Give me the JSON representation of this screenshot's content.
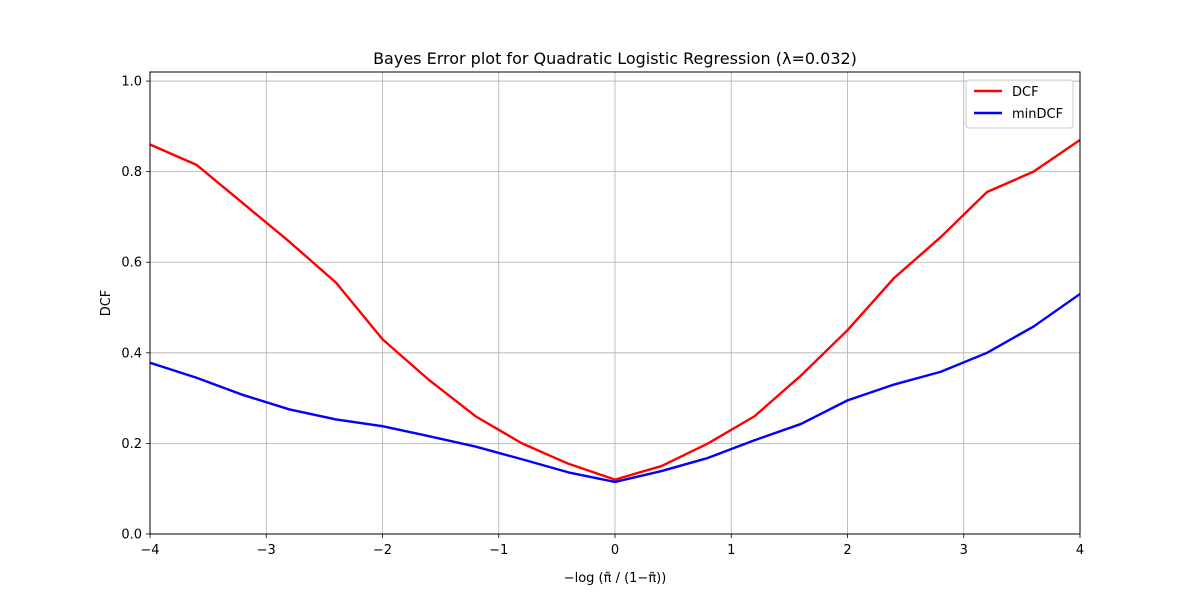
{
  "chart_data": {
    "type": "line",
    "title": "Bayes Error plot for Quadratic Logistic Regression (λ=0.032)",
    "xlabel": "−log (π̃ / (1−π̃))",
    "ylabel": "DCF",
    "xlim": [
      -4,
      4
    ],
    "ylim": [
      0,
      1.02
    ],
    "xticks": [
      -4,
      -3,
      -2,
      -1,
      0,
      1,
      2,
      3,
      4
    ],
    "xtick_labels": [
      "−4",
      "−3",
      "−2",
      "−1",
      "0",
      "1",
      "2",
      "3",
      "4"
    ],
    "yticks": [
      0.0,
      0.2,
      0.4,
      0.6,
      0.8,
      1.0
    ],
    "ytick_labels": [
      "0.0",
      "0.2",
      "0.4",
      "0.6",
      "0.8",
      "1.0"
    ],
    "grid": true,
    "legend_position": "top-right",
    "x": [
      -4,
      -3.6,
      -3.2,
      -2.8,
      -2.4,
      -2,
      -1.6,
      -1.2,
      -0.8,
      -0.4,
      0,
      0.4,
      0.8,
      1.2,
      1.6,
      2,
      2.4,
      2.8,
      3.2,
      3.6,
      4
    ],
    "series": [
      {
        "name": "DCF",
        "color": "#ff0000",
        "values": [
          0.86,
          0.815,
          0.73,
          0.645,
          0.555,
          0.43,
          0.34,
          0.26,
          0.2,
          0.155,
          0.12,
          0.15,
          0.2,
          0.26,
          0.35,
          0.45,
          0.565,
          0.655,
          0.755,
          0.8,
          0.87
        ]
      },
      {
        "name": "minDCF",
        "color": "#0000ff",
        "values": [
          0.378,
          0.345,
          0.307,
          0.275,
          0.253,
          0.238,
          0.216,
          0.193,
          0.165,
          0.136,
          0.115,
          0.139,
          0.168,
          0.207,
          0.243,
          0.295,
          0.33,
          0.358,
          0.4,
          0.458,
          0.53
        ]
      }
    ]
  }
}
